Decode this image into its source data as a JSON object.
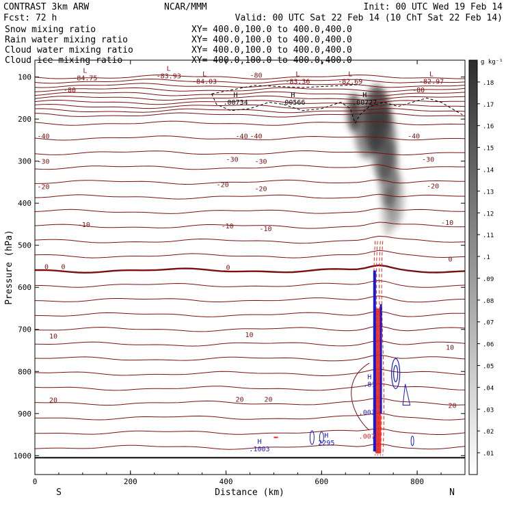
{
  "header": {
    "experiment": "CONTRAST  3km ARW",
    "center": "NCAR/MMM",
    "init": "Init: 00 UTC Wed 19 Feb 14",
    "forecast": "Fcst:   72 h",
    "valid": "Valid: 00 UTC Sat 22 Feb 14 (10 ChT Sat 22 Feb 14)"
  },
  "fields": [
    {
      "name": "Snow mixing ratio",
      "xy": "XY= 400.0,100.0 to 400.0,400.0",
      "color": "#000000"
    },
    {
      "name": "Rain water mixing ratio",
      "xy": "XY= 400.0,100.0 to 400.0,400.0",
      "color": "#e8241c"
    },
    {
      "name": "Cloud water mixing ratio",
      "xy": "XY= 400.0,100.0 to 400.0,400.0",
      "color": "#1a1acc"
    },
    {
      "name": "Cloud ice mixing ratio",
      "xy": "XY= 400.0,100.0 to 400.0,400.0",
      "color": "#000000"
    }
  ],
  "chart_data": {
    "type": "cross-section",
    "xlabel": "Distance (km)",
    "ylabel": "Pressure (hPa)",
    "xlim": [
      0,
      900
    ],
    "ylim": [
      1045,
      60
    ],
    "x_ticks": [
      0,
      200,
      400,
      600,
      800
    ],
    "y_ticks": [
      100,
      200,
      300,
      400,
      500,
      600,
      700,
      800,
      900,
      1000
    ],
    "x_end_labels": {
      "left": "S",
      "right": "N"
    },
    "colorbar": {
      "unit": "g kg⁻¹",
      "levels": [
        ".01",
        ".02",
        ".03",
        ".04",
        ".05",
        ".06",
        ".07",
        ".08",
        ".09",
        ".1",
        ".11",
        ".12",
        ".13",
        ".14",
        ".15",
        ".16",
        ".17",
        ".18"
      ]
    },
    "temperature_contours": {
      "color": "#7a1010",
      "labels": [
        {
          "x": 60,
          "p": 130,
          "text": "-80"
        },
        {
          "x": 450,
          "p": 95,
          "text": "-80"
        },
        {
          "x": 790,
          "p": 130,
          "text": "-80"
        },
        {
          "x": 5,
          "p": 240,
          "text": "-40"
        },
        {
          "x": 420,
          "p": 240,
          "text": "-40"
        },
        {
          "x": 450,
          "p": 240,
          "text": "-40"
        },
        {
          "x": 780,
          "p": 240,
          "text": "-40"
        },
        {
          "x": 5,
          "p": 300,
          "text": "-30"
        },
        {
          "x": 400,
          "p": 295,
          "text": "-30"
        },
        {
          "x": 460,
          "p": 300,
          "text": "-30"
        },
        {
          "x": 810,
          "p": 295,
          "text": "-30"
        },
        {
          "x": 5,
          "p": 360,
          "text": "-20"
        },
        {
          "x": 380,
          "p": 355,
          "text": "-20"
        },
        {
          "x": 460,
          "p": 365,
          "text": "-20"
        },
        {
          "x": 820,
          "p": 358,
          "text": "-20"
        },
        {
          "x": 90,
          "p": 450,
          "text": "-10"
        },
        {
          "x": 390,
          "p": 453,
          "text": "-10"
        },
        {
          "x": 470,
          "p": 460,
          "text": "-10"
        },
        {
          "x": 850,
          "p": 445,
          "text": "-10"
        },
        {
          "x": 20,
          "p": 550,
          "text": "0"
        },
        {
          "x": 55,
          "p": 550,
          "text": "0"
        },
        {
          "x": 400,
          "p": 552,
          "text": "0"
        },
        {
          "x": 865,
          "p": 532,
          "text": "0"
        },
        {
          "x": 30,
          "p": 715,
          "text": "10"
        },
        {
          "x": 440,
          "p": 712,
          "text": "10"
        },
        {
          "x": 860,
          "p": 742,
          "text": "10"
        },
        {
          "x": 30,
          "p": 867,
          "text": "20"
        },
        {
          "x": 420,
          "p": 865,
          "text": "20"
        },
        {
          "x": 480,
          "p": 865,
          "text": "20"
        },
        {
          "x": 865,
          "p": 880,
          "text": "20"
        }
      ]
    },
    "extrema": [
      {
        "x": 105,
        "p": 90,
        "mark": "L",
        "value": "-84.75",
        "color": "#7a1010"
      },
      {
        "x": 280,
        "p": 85,
        "mark": "L",
        "value": "-83.93",
        "color": "#7a1010"
      },
      {
        "x": 355,
        "p": 98,
        "mark": "L",
        "value": "-84.03",
        "color": "#7a1010"
      },
      {
        "x": 550,
        "p": 98,
        "mark": "L",
        "value": "-83.36",
        "color": "#7a1010"
      },
      {
        "x": 660,
        "p": 98,
        "mark": "L",
        "value": "-82.69",
        "color": "#7a1010"
      },
      {
        "x": 830,
        "p": 98,
        "mark": "L",
        "value": "-82.97",
        "color": "#7a1010"
      },
      {
        "x": 420,
        "p": 148,
        "mark": "H",
        "value": ".00734",
        "color": "#000000"
      },
      {
        "x": 540,
        "p": 148,
        "mark": "H",
        "value": ".00566",
        "color": "#000000"
      },
      {
        "x": 690,
        "p": 148,
        "mark": "H",
        "value": ".00727",
        "color": "#000000"
      },
      {
        "x": 700,
        "p": 818,
        "mark": "H",
        "value": ".81",
        "color": "#1a1acc"
      },
      {
        "x": 695,
        "p": 885,
        "mark": "",
        "value": ".003",
        "color": "#1a1acc"
      },
      {
        "x": 695,
        "p": 942,
        "mark": "",
        "value": ".007",
        "color": "#e8241c"
      },
      {
        "x": 470,
        "p": 972,
        "mark": "H",
        "value": ".1003",
        "color": "#1a1acc"
      },
      {
        "x": 610,
        "p": 957,
        "mark": "H",
        "value": "2295",
        "color": "#1a1acc"
      }
    ]
  }
}
